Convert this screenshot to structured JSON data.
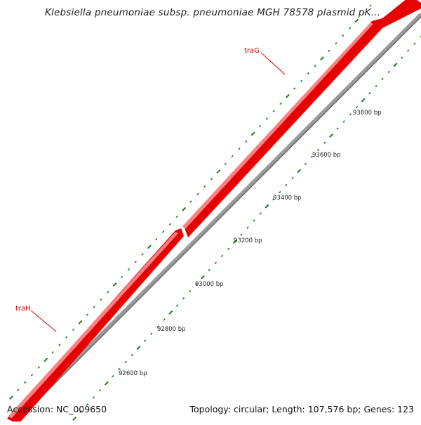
{
  "title": "Klebsiella pneumoniae subsp. pneumoniae MGH 78578 plasmid pK...",
  "accession": "Accession: NC_009650",
  "stats": "Topology: circular; Length: 107,576 bp; Genes: 123",
  "colors": {
    "gene": "#e60000",
    "gene_highlight": "#ff6a6a",
    "backbone": "#888888",
    "tick": "#1a7a1a",
    "label_line": "#e00000"
  },
  "genes": [
    {
      "name": "traG",
      "strand": "forward"
    },
    {
      "name": "traH",
      "strand": "forward"
    }
  ],
  "ticks": [
    "92600 bp",
    "92800 bp",
    "93000 bp",
    "93200 bp",
    "93400 bp",
    "93600 bp",
    "93800 bp"
  ]
}
